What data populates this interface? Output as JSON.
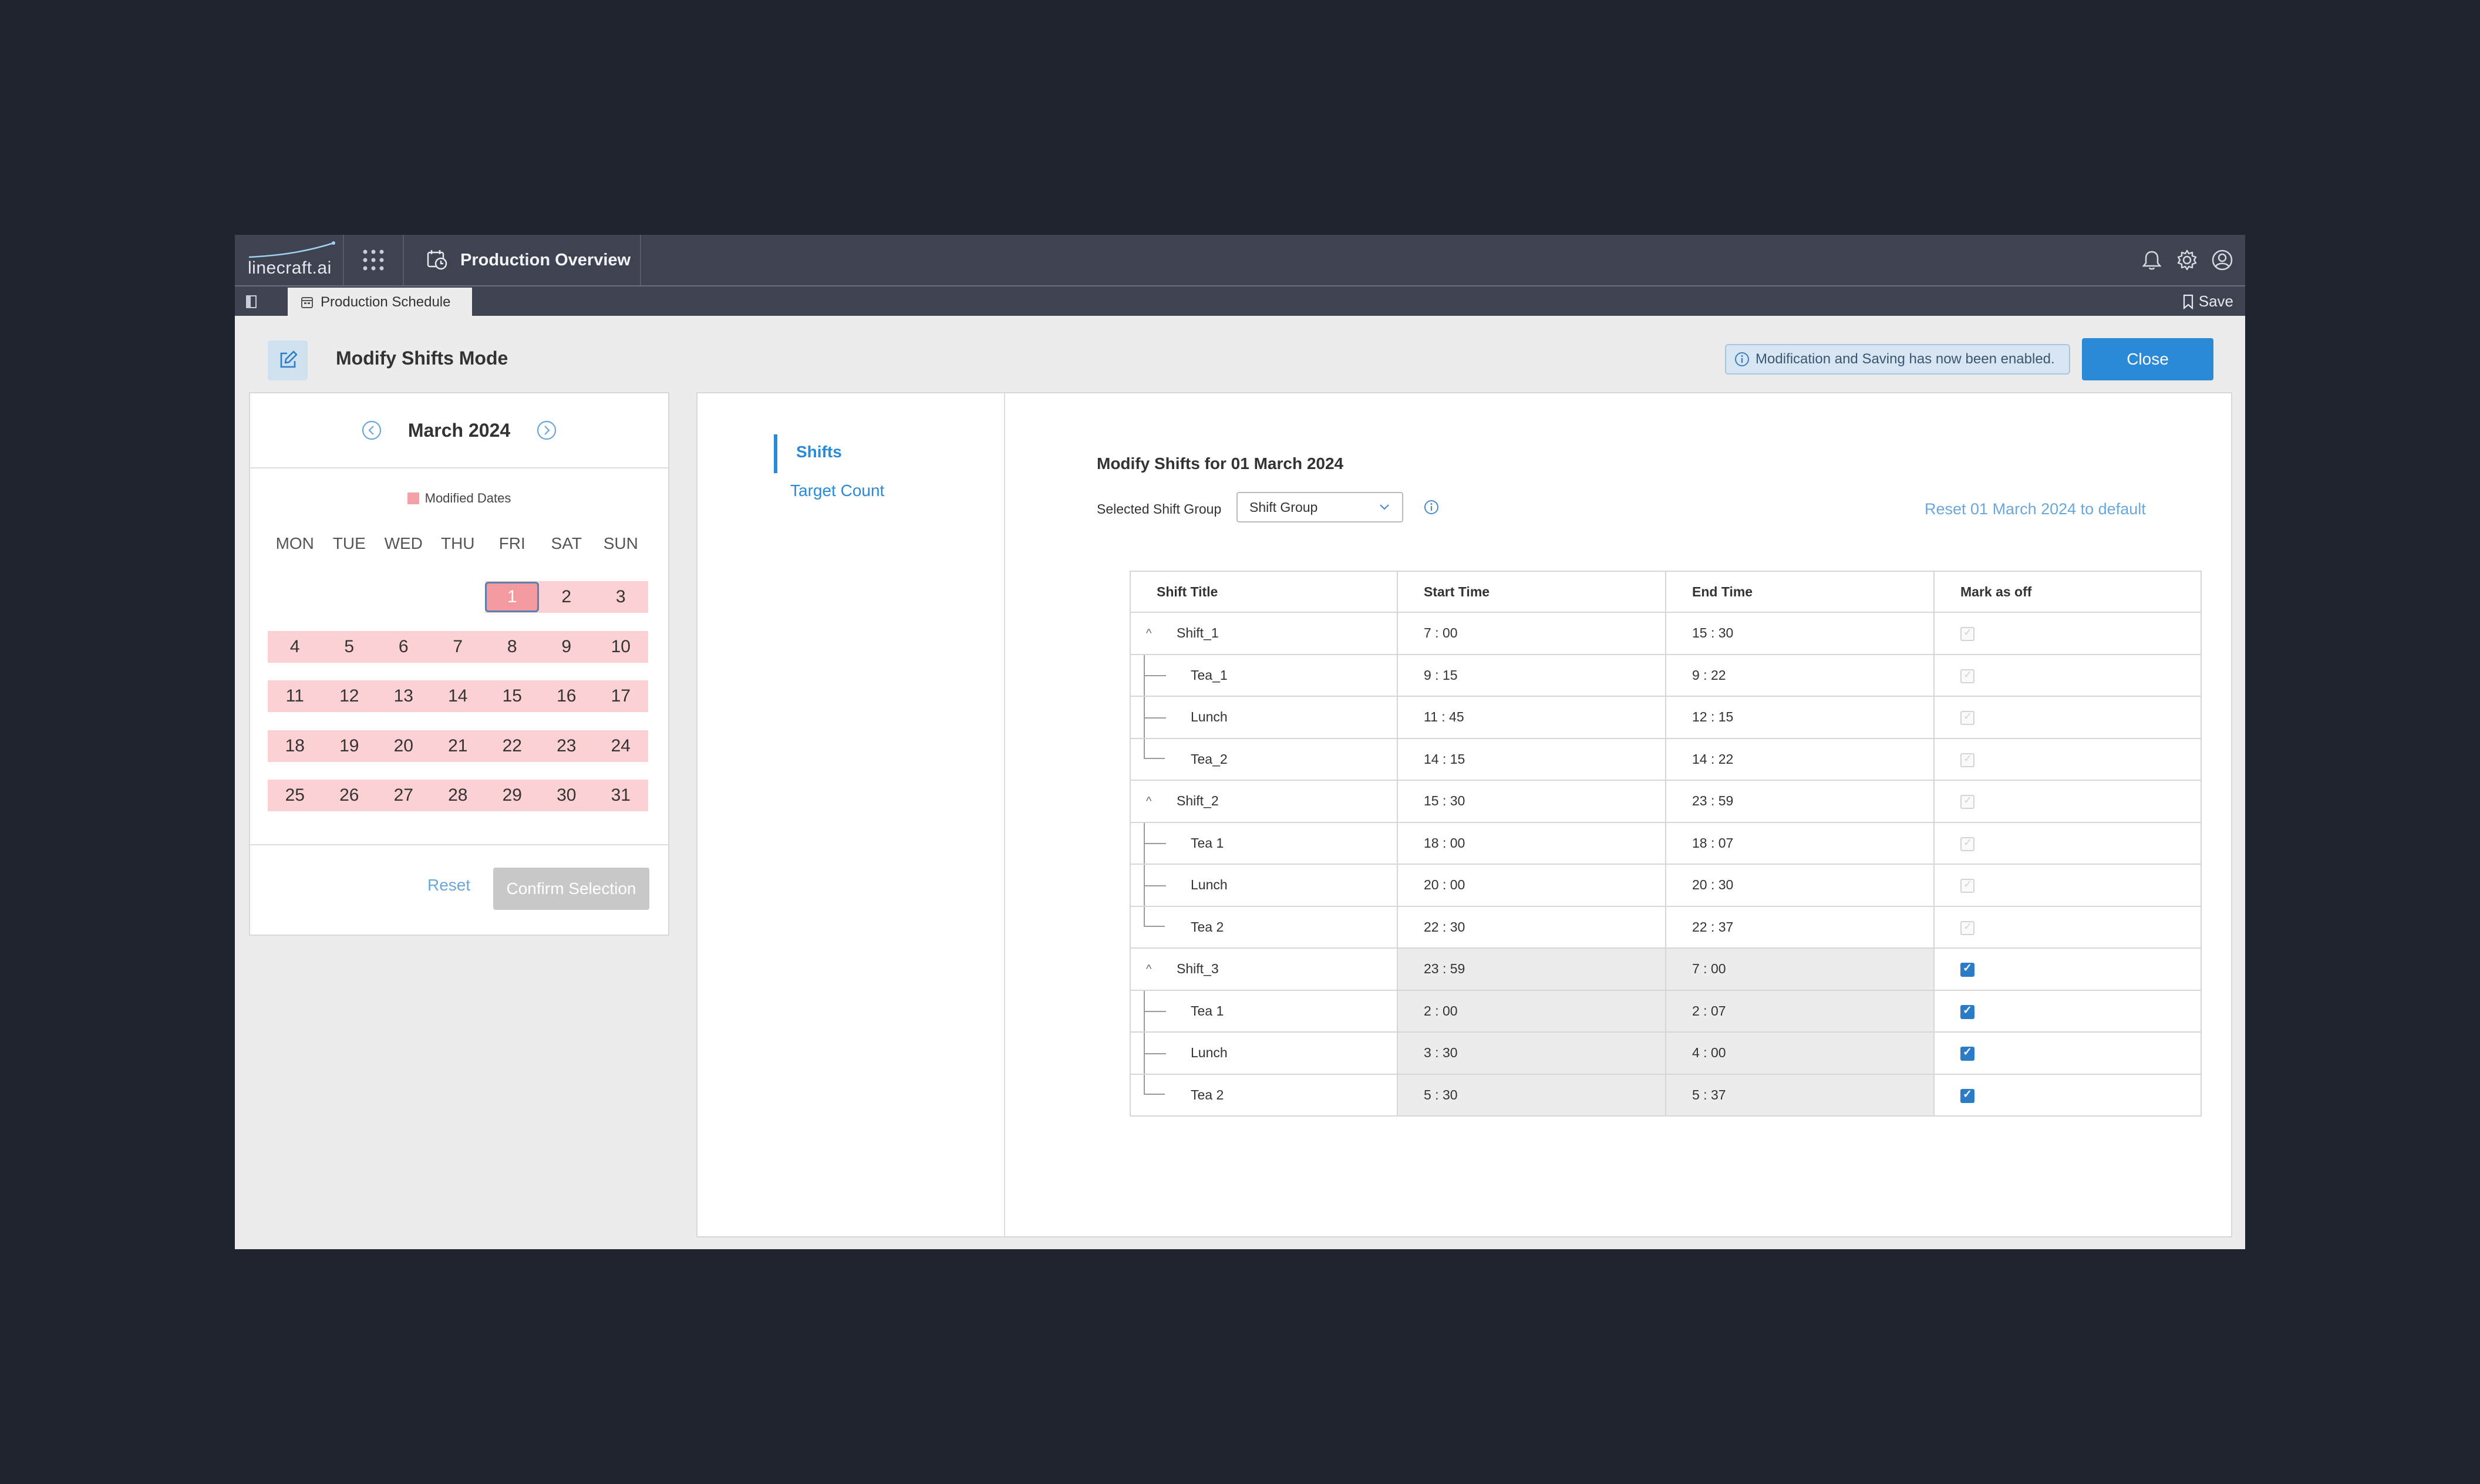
{
  "topbar": {
    "logo": "linecraft.ai",
    "tab_title": "Production Overview"
  },
  "subbar": {
    "tab_label": "Production Schedule",
    "save_label": "Save"
  },
  "header": {
    "title": "Modify Shifts Mode",
    "banner": "Modification and Saving has now been enabled.",
    "close_label": "Close"
  },
  "calendar": {
    "month": "March 2024",
    "legend": "Modified Dates",
    "weekdays": [
      "MON",
      "TUE",
      "WED",
      "THU",
      "FRI",
      "SAT",
      "SUN"
    ],
    "leading_blanks": 4,
    "days": [
      "1",
      "2",
      "3",
      "4",
      "5",
      "6",
      "7",
      "8",
      "9",
      "10",
      "11",
      "12",
      "13",
      "14",
      "15",
      "16",
      "17",
      "18",
      "19",
      "20",
      "21",
      "22",
      "23",
      "24",
      "25",
      "26",
      "27",
      "28",
      "29",
      "30",
      "31"
    ],
    "selected_day": "1",
    "reset_label": "Reset",
    "confirm_label": "Confirm Selection"
  },
  "nav": {
    "shifts": "Shifts",
    "target_count": "Target Count"
  },
  "content": {
    "title": "Modify Shifts for 01 March 2024",
    "shift_group_label": "Selected Shift Group",
    "shift_group_value": "Shift Group",
    "reset_default": "Reset 01 March 2024 to default",
    "columns": [
      "Shift Title",
      "Start Time",
      "End Time",
      "Mark as off"
    ],
    "rows": [
      {
        "title": "Shift_1",
        "start": "7 : 00",
        "end": "15 : 30",
        "off": false,
        "level": "parent",
        "tree": ""
      },
      {
        "title": "Tea_1",
        "start": "9 : 15",
        "end": "9 : 22",
        "off": false,
        "level": "child",
        "tree": "mid"
      },
      {
        "title": "Lunch",
        "start": "11 : 45",
        "end": "12 : 15",
        "off": false,
        "level": "child",
        "tree": "mid"
      },
      {
        "title": "Tea_2",
        "start": "14 : 15",
        "end": "14 : 22",
        "off": false,
        "level": "child",
        "tree": "end"
      },
      {
        "title": "Shift_2",
        "start": "15 : 30",
        "end": "23 : 59",
        "off": false,
        "level": "parent",
        "tree": ""
      },
      {
        "title": "Tea 1",
        "start": "18 : 00",
        "end": "18 : 07",
        "off": false,
        "level": "child",
        "tree": "mid"
      },
      {
        "title": "Lunch",
        "start": "20 : 00",
        "end": "20 : 30",
        "off": false,
        "level": "child",
        "tree": "mid"
      },
      {
        "title": "Tea 2",
        "start": "22 : 30",
        "end": "22 : 37",
        "off": false,
        "level": "child",
        "tree": "end"
      },
      {
        "title": "Shift_3",
        "start": "23 : 59",
        "end": "7 : 00",
        "off": true,
        "level": "parent",
        "tree": ""
      },
      {
        "title": "Tea 1",
        "start": "2 : 00",
        "end": "2 : 07",
        "off": true,
        "level": "child",
        "tree": "mid"
      },
      {
        "title": "Lunch",
        "start": "3 : 30",
        "end": "4 : 00",
        "off": true,
        "level": "child",
        "tree": "mid"
      },
      {
        "title": "Tea 2",
        "start": "5 : 30",
        "end": "5 : 37",
        "off": true,
        "level": "child",
        "tree": "end"
      }
    ]
  },
  "colors": {
    "accent": "#2a8ad8",
    "modified": "#fbd1d3",
    "topbar": "#3f4250"
  }
}
